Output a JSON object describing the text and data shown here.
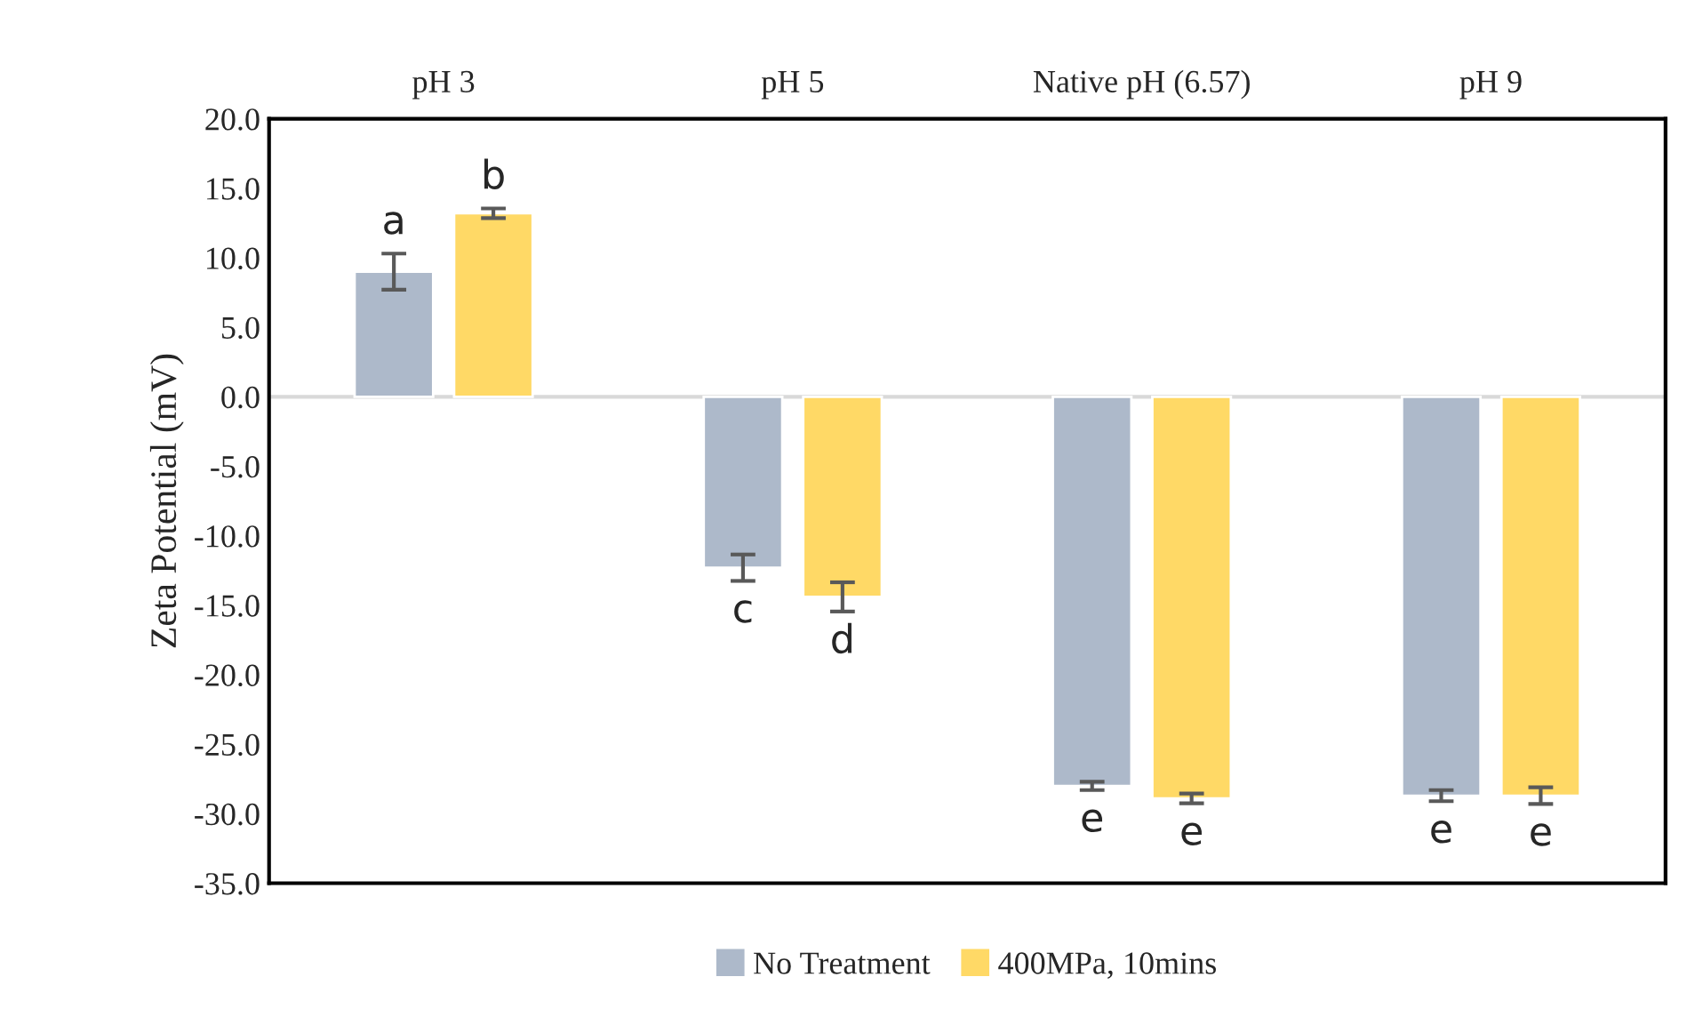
{
  "chart_data": {
    "type": "bar",
    "ylabel": "Zeta Potential (mV)",
    "categories": [
      "pH 3",
      "pH 5",
      "Native pH (6.57)",
      "pH 9"
    ],
    "series": [
      {
        "name": "No Treatment",
        "color": "#adb9ca",
        "values": [
          9.0,
          -12.3,
          -28.0,
          -28.7
        ],
        "errors": [
          1.3,
          0.95,
          0.3,
          0.4
        ],
        "value_labels": [
          "a",
          "c",
          "e",
          "e"
        ]
      },
      {
        "name": "400MPa, 10mins",
        "color": "#ffd966",
        "values": [
          13.2,
          -14.4,
          -28.9,
          -28.7
        ],
        "errors": [
          0.35,
          1.05,
          0.35,
          0.6
        ],
        "value_labels": [
          "b",
          "d",
          "e",
          "e"
        ]
      }
    ],
    "ylim": [
      -35,
      20
    ],
    "yticks": [
      {
        "value": 20,
        "label": "20.0"
      },
      {
        "value": 15,
        "label": "15.0"
      },
      {
        "value": 10,
        "label": "10.0"
      },
      {
        "value": 5,
        "label": "5.0"
      },
      {
        "value": 0,
        "label": "0.0"
      },
      {
        "value": -5,
        "label": "-5.0"
      },
      {
        "value": -10,
        "label": "-10.0"
      },
      {
        "value": -15,
        "label": "-15.0"
      },
      {
        "value": -20,
        "label": "-20.0"
      },
      {
        "value": -25,
        "label": "-25.0"
      },
      {
        "value": -30,
        "label": "-30.0"
      },
      {
        "value": -35,
        "label": "-35.0"
      }
    ],
    "legend": "bottom"
  }
}
